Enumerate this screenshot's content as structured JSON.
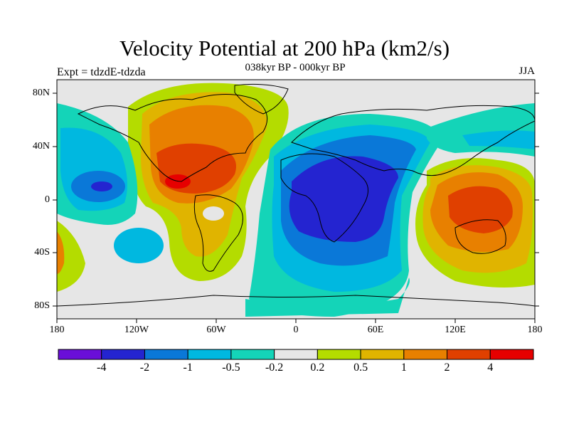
{
  "title": "Velocity Potential at 200 hPa (km2/s)",
  "subtitle": "038kyr BP - 000kyr BP",
  "left_label": "Expt = tdzdE-tdzda",
  "right_label": "JJA",
  "map": {
    "lat_labels": [
      "80N",
      "40N",
      "0",
      "40S",
      "80S"
    ],
    "lon_labels": [
      "180",
      "120W",
      "60W",
      "0",
      "60E",
      "120E",
      "180"
    ],
    "background_color": "#e6e6e6"
  },
  "colorbar": {
    "colors": [
      "#6a0fd8",
      "#2424d0",
      "#0a78d8",
      "#00b8e0",
      "#14d4b8",
      "#e6e6e6",
      "#b4dc00",
      "#e0b400",
      "#e88000",
      "#e04000",
      "#e60000"
    ],
    "labels": [
      "-4",
      "-2",
      "-1",
      "-0.5",
      "-0.2",
      "0.2",
      "0.5",
      "1",
      "2",
      "4"
    ]
  }
}
